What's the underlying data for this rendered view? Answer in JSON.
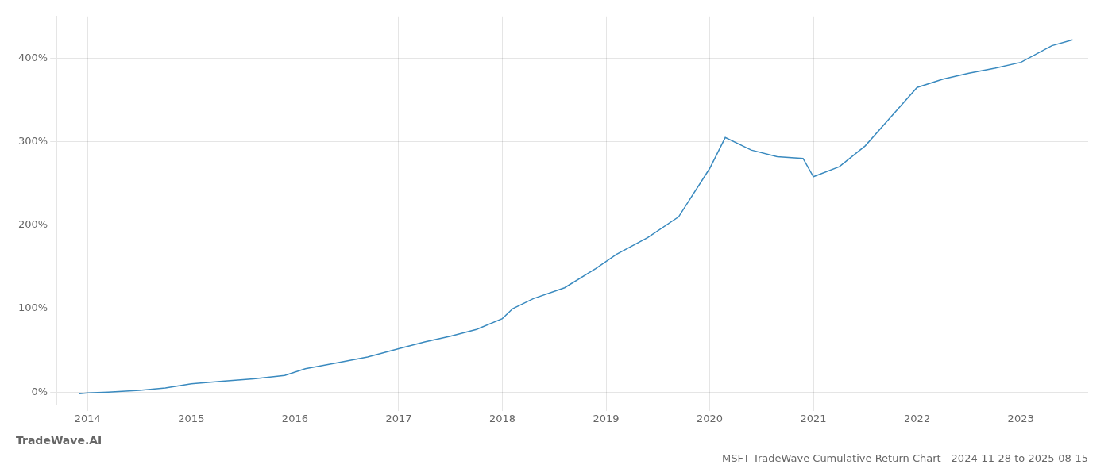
{
  "chart_data": {
    "type": "line",
    "title": "MSFT TradeWave Cumulative Return Chart - 2024-11-28 to 2025-08-15",
    "annotations": [
      "TradeWave.AI"
    ],
    "x": [
      2013.92,
      2014.0,
      2014.2,
      2014.5,
      2014.75,
      2015.0,
      2015.3,
      2015.6,
      2015.9,
      2016.1,
      2016.4,
      2016.7,
      2017.0,
      2017.25,
      2017.5,
      2017.75,
      2018.0,
      2018.1,
      2018.3,
      2018.6,
      2018.9,
      2019.1,
      2019.4,
      2019.7,
      2020.0,
      2020.15,
      2020.4,
      2020.65,
      2020.9,
      2021.0,
      2021.25,
      2021.5,
      2021.75,
      2022.0,
      2022.25,
      2022.5,
      2022.75,
      2023.0,
      2023.3,
      2023.5
    ],
    "values": [
      -2,
      -1,
      0,
      2,
      5,
      10,
      13,
      16,
      20,
      28,
      35,
      42,
      52,
      60,
      67,
      75,
      88,
      100,
      112,
      125,
      148,
      165,
      185,
      210,
      268,
      305,
      290,
      282,
      280,
      258,
      270,
      295,
      330,
      365,
      375,
      382,
      388,
      395,
      415,
      422
    ],
    "color": "#3a8abf",
    "xlim": [
      2013.7,
      2023.65
    ],
    "xticks": [
      2014,
      2015,
      2016,
      2017,
      2018,
      2019,
      2020,
      2021,
      2022,
      2023
    ],
    "ylim": [
      -15,
      450
    ],
    "yticks": [
      {
        "value": 0,
        "label": "0%"
      },
      {
        "value": 100,
        "label": "100%"
      },
      {
        "value": 200,
        "label": "200%"
      },
      {
        "value": 300,
        "label": "300%"
      },
      {
        "value": 400,
        "label": "400%"
      }
    ],
    "grid": true
  }
}
